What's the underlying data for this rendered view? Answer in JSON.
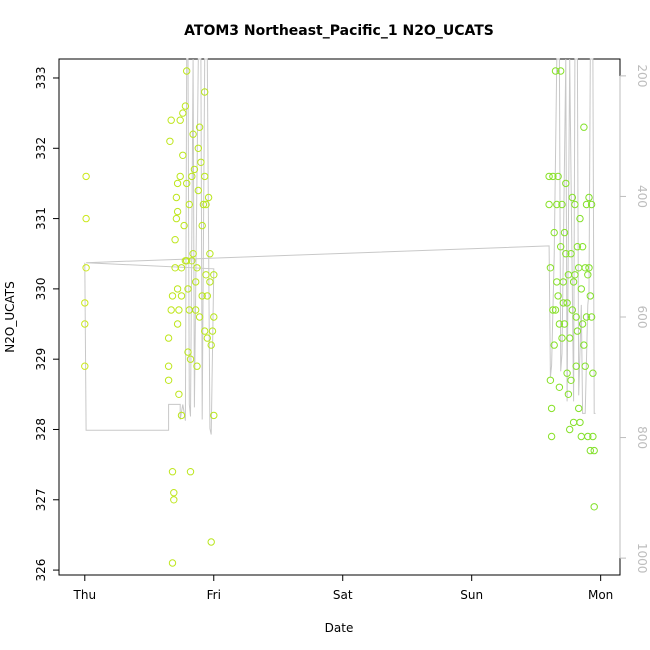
{
  "chart_data": {
    "type": "scatter",
    "title": "ATOM3 Northeast_Pacific_1 N2O_UCATS",
    "xlabel": "Date",
    "ylabel": "N2O_UCATS",
    "x_ticks": [
      "Thu",
      "Fri",
      "Sat",
      "Sun",
      "Mon"
    ],
    "x_tick_values": [
      0,
      1,
      2,
      3,
      4
    ],
    "xlim": [
      -0.2,
      4.15
    ],
    "ylim": [
      325.93,
      333.27
    ],
    "y_ticks": [
      326,
      327,
      328,
      329,
      330,
      331,
      332,
      333
    ],
    "y2_ticks": [
      200,
      400,
      600,
      800,
      1000
    ],
    "y2lim": [
      1028,
      172
    ],
    "grid": false,
    "colors": {
      "axis": "#000000",
      "secondary_axis": "#bdbdbd",
      "altitude_line": "#c8c8c8",
      "points_start": "#cfe81a",
      "points_end": "#7ee02a"
    },
    "series": [
      {
        "values": [
          [
            0.01,
            331.6
          ],
          [
            0.01,
            331.0
          ],
          [
            0.01,
            330.3
          ],
          [
            0.0,
            329.8
          ],
          [
            0.0,
            329.5
          ],
          [
            0.0,
            328.9
          ],
          [
            0.65,
            329.3
          ],
          [
            0.65,
            328.9
          ],
          [
            0.65,
            328.7
          ],
          [
            0.66,
            332.1
          ],
          [
            0.67,
            332.4
          ],
          [
            0.67,
            329.7
          ],
          [
            0.68,
            329.9
          ],
          [
            0.68,
            327.4
          ],
          [
            0.68,
            326.1
          ],
          [
            0.69,
            327.1
          ],
          [
            0.69,
            327.0
          ],
          [
            0.7,
            330.3
          ],
          [
            0.7,
            330.7
          ],
          [
            0.71,
            331.0
          ],
          [
            0.71,
            331.3
          ],
          [
            0.72,
            331.5
          ],
          [
            0.72,
            331.1
          ],
          [
            0.72,
            330.0
          ],
          [
            0.72,
            329.5
          ],
          [
            0.73,
            329.7
          ],
          [
            0.73,
            328.5
          ],
          [
            0.74,
            332.4
          ],
          [
            0.74,
            331.6
          ],
          [
            0.75,
            330.3
          ],
          [
            0.75,
            329.9
          ],
          [
            0.75,
            328.2
          ],
          [
            0.76,
            332.5
          ],
          [
            0.76,
            331.9
          ],
          [
            0.77,
            330.9
          ],
          [
            0.78,
            332.6
          ],
          [
            0.78,
            330.4
          ],
          [
            0.79,
            333.1
          ],
          [
            0.79,
            331.5
          ],
          [
            0.79,
            330.4
          ],
          [
            0.8,
            330.0
          ],
          [
            0.8,
            329.1
          ],
          [
            0.81,
            331.2
          ],
          [
            0.81,
            329.7
          ],
          [
            0.82,
            327.4
          ],
          [
            0.82,
            329.0
          ],
          [
            0.83,
            331.6
          ],
          [
            0.83,
            330.4
          ],
          [
            0.84,
            332.2
          ],
          [
            0.84,
            330.5
          ],
          [
            0.85,
            331.7
          ],
          [
            0.86,
            330.1
          ],
          [
            0.86,
            329.7
          ],
          [
            0.87,
            330.3
          ],
          [
            0.87,
            328.9
          ],
          [
            0.88,
            332.0
          ],
          [
            0.88,
            331.4
          ],
          [
            0.89,
            332.3
          ],
          [
            0.89,
            329.6
          ],
          [
            0.9,
            331.8
          ],
          [
            0.91,
            330.9
          ],
          [
            0.91,
            329.9
          ],
          [
            0.92,
            331.2
          ],
          [
            0.93,
            332.8
          ],
          [
            0.93,
            331.6
          ],
          [
            0.93,
            329.4
          ],
          [
            0.94,
            331.2
          ],
          [
            0.94,
            330.2
          ],
          [
            0.95,
            329.9
          ],
          [
            0.95,
            329.3
          ],
          [
            0.96,
            331.3
          ],
          [
            0.97,
            330.5
          ],
          [
            0.97,
            330.1
          ],
          [
            0.98,
            329.2
          ],
          [
            0.98,
            326.4
          ],
          [
            0.99,
            329.4
          ],
          [
            1.0,
            330.2
          ],
          [
            1.0,
            329.6
          ],
          [
            1.0,
            328.2
          ],
          [
            3.6,
            331.6
          ],
          [
            3.6,
            331.2
          ],
          [
            3.61,
            330.3
          ],
          [
            3.61,
            328.7
          ],
          [
            3.62,
            327.9
          ],
          [
            3.62,
            328.3
          ],
          [
            3.63,
            331.6
          ],
          [
            3.63,
            329.7
          ],
          [
            3.64,
            330.8
          ],
          [
            3.64,
            329.2
          ],
          [
            3.65,
            333.1
          ],
          [
            3.65,
            329.7
          ],
          [
            3.66,
            331.2
          ],
          [
            3.66,
            330.1
          ],
          [
            3.67,
            331.6
          ],
          [
            3.67,
            329.9
          ],
          [
            3.68,
            329.5
          ],
          [
            3.68,
            328.6
          ],
          [
            3.69,
            333.1
          ],
          [
            3.69,
            330.6
          ],
          [
            3.7,
            331.2
          ],
          [
            3.7,
            329.3
          ],
          [
            3.71,
            330.1
          ],
          [
            3.71,
            329.8
          ],
          [
            3.72,
            330.8
          ],
          [
            3.72,
            329.5
          ],
          [
            3.73,
            331.5
          ],
          [
            3.73,
            330.5
          ],
          [
            3.74,
            329.8
          ],
          [
            3.74,
            328.8
          ],
          [
            3.75,
            330.2
          ],
          [
            3.75,
            328.5
          ],
          [
            3.76,
            329.3
          ],
          [
            3.76,
            328.0
          ],
          [
            3.77,
            330.5
          ],
          [
            3.77,
            328.7
          ],
          [
            3.78,
            331.3
          ],
          [
            3.78,
            329.7
          ],
          [
            3.79,
            330.1
          ],
          [
            3.79,
            328.1
          ],
          [
            3.8,
            331.2
          ],
          [
            3.8,
            330.2
          ],
          [
            3.81,
            329.6
          ],
          [
            3.81,
            328.9
          ],
          [
            3.82,
            330.6
          ],
          [
            3.82,
            329.4
          ],
          [
            3.83,
            330.3
          ],
          [
            3.83,
            328.3
          ],
          [
            3.84,
            331.0
          ],
          [
            3.84,
            328.1
          ],
          [
            3.85,
            330.0
          ],
          [
            3.85,
            327.9
          ],
          [
            3.86,
            330.6
          ],
          [
            3.86,
            329.5
          ],
          [
            3.87,
            332.3
          ],
          [
            3.87,
            329.2
          ],
          [
            3.88,
            330.3
          ],
          [
            3.88,
            328.9
          ],
          [
            3.89,
            331.2
          ],
          [
            3.89,
            329.6
          ],
          [
            3.9,
            330.2
          ],
          [
            3.9,
            327.9
          ],
          [
            3.91,
            331.3
          ],
          [
            3.91,
            330.3
          ],
          [
            3.92,
            329.9
          ],
          [
            3.92,
            327.7
          ],
          [
            3.93,
            331.2
          ],
          [
            3.93,
            329.6
          ],
          [
            3.94,
            328.8
          ],
          [
            3.94,
            327.9
          ],
          [
            3.95,
            327.7
          ],
          [
            3.95,
            326.9
          ]
        ]
      }
    ],
    "altitude_series": {
      "axis": "right",
      "values": [
        [
          0.0,
          510
        ],
        [
          0.01,
          788
        ],
        [
          0.65,
          788
        ],
        [
          0.65,
          745
        ],
        [
          0.74,
          745
        ],
        [
          0.74,
          770
        ],
        [
          0.76,
          745
        ],
        [
          0.78,
          772
        ],
        [
          0.79,
          172
        ],
        [
          0.8,
          172
        ],
        [
          0.81,
          745
        ],
        [
          0.82,
          765
        ],
        [
          0.84,
          172
        ],
        [
          0.85,
          750
        ],
        [
          0.88,
          172
        ],
        [
          0.9,
          172
        ],
        [
          0.91,
          770
        ],
        [
          0.93,
          172
        ],
        [
          0.95,
          172
        ],
        [
          0.97,
          785
        ],
        [
          0.98,
          795
        ],
        [
          1.0,
          520
        ],
        [
          0.01,
          510
        ],
        [
          3.6,
          482
        ],
        [
          3.61,
          700
        ],
        [
          3.62,
          680
        ],
        [
          3.64,
          500
        ],
        [
          3.66,
          172
        ],
        [
          3.68,
          172
        ],
        [
          3.69,
          690
        ],
        [
          3.7,
          660
        ],
        [
          3.73,
          172
        ],
        [
          3.74,
          740
        ],
        [
          3.76,
          172
        ],
        [
          3.79,
          740
        ],
        [
          3.8,
          172
        ],
        [
          3.82,
          172
        ],
        [
          3.83,
          730
        ],
        [
          3.85,
          580
        ],
        [
          3.86,
          760
        ],
        [
          3.88,
          760
        ],
        [
          3.9,
          580
        ],
        [
          3.91,
          560
        ],
        [
          3.92,
          172
        ],
        [
          3.94,
          172
        ],
        [
          3.95,
          760
        ],
        [
          3.96,
          760
        ]
      ]
    }
  }
}
